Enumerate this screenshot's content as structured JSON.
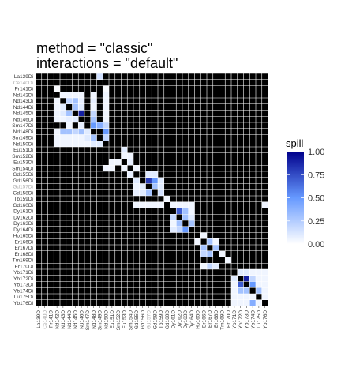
{
  "chart_data": {
    "type": "heatmap",
    "title_lines": [
      "method = \"classic\"",
      "interactions = \"default\""
    ],
    "channels": [
      "La139Di",
      "Ce140Di",
      "Pr141Di",
      "Nd142Di",
      "Nd143Di",
      "Nd144Di",
      "Nd145Di",
      "Nd146Di",
      "Sm147Di",
      "Nd148Di",
      "Sm149Di",
      "Nd150Di",
      "Eu151Di",
      "Sm152Di",
      "Eu153Di",
      "Sm154Di",
      "Gd155Di",
      "Gd156Di",
      "Gd157Di",
      "Gd158Di",
      "Tb159Di",
      "Gd160Di",
      "Dy161Di",
      "Dy162Di",
      "Dy163Di",
      "Dy164Di",
      "Ho165Di",
      "Er166Di",
      "Er167Di",
      "Er168Di",
      "Tm169Di",
      "Er170Di",
      "Yb171Di",
      "Yb172Di",
      "Yb173Di",
      "Yb174Di",
      "Lu175Di",
      "Yb176Di"
    ],
    "muted_channels": [
      "Ce140Di",
      "Gd157Di"
    ],
    "legend": {
      "title": "spill",
      "ticks": [
        1.0,
        0.75,
        0.5,
        0.25,
        0.0
      ],
      "tick_labels": [
        "1.00",
        "0.75",
        "0.50",
        "0.25",
        "0.00"
      ],
      "range": [
        0,
        1
      ]
    },
    "colors": {
      "zero": "#000000",
      "low": "#ffffff",
      "mid": "#6699ff",
      "high": "#00008b",
      "diagonal": "#000000",
      "grid": "#ffffff"
    },
    "cells": [
      [
        0,
        10,
        0.15
      ],
      [
        2,
        3,
        0.02
      ],
      [
        2,
        11,
        0.02
      ],
      [
        3,
        4,
        0.05
      ],
      [
        3,
        5,
        0.05
      ],
      [
        3,
        6,
        0.05
      ],
      [
        3,
        7,
        0.05
      ],
      [
        3,
        9,
        0.05
      ],
      [
        3,
        11,
        0.05
      ],
      [
        4,
        3,
        0.05
      ],
      [
        4,
        5,
        0.2
      ],
      [
        4,
        6,
        0.3
      ],
      [
        4,
        7,
        0.08
      ],
      [
        4,
        9,
        0.08
      ],
      [
        4,
        11,
        0.05
      ],
      [
        5,
        3,
        0.05
      ],
      [
        5,
        4,
        0.1
      ],
      [
        5,
        6,
        0.3
      ],
      [
        5,
        7,
        0.1
      ],
      [
        5,
        9,
        0.05
      ],
      [
        5,
        11,
        0.05
      ],
      [
        6,
        3,
        0.05
      ],
      [
        6,
        4,
        0.1
      ],
      [
        6,
        5,
        0.3
      ],
      [
        6,
        7,
        0.9
      ],
      [
        6,
        9,
        0.2
      ],
      [
        6,
        11,
        0.05
      ],
      [
        7,
        3,
        0.05
      ],
      [
        7,
        4,
        0.05
      ],
      [
        7,
        5,
        0.08
      ],
      [
        7,
        6,
        0.1
      ],
      [
        7,
        9,
        0.3
      ],
      [
        7,
        11,
        0.05
      ],
      [
        8,
        5,
        0.05
      ],
      [
        8,
        7,
        0.08
      ],
      [
        8,
        9,
        0.5
      ],
      [
        8,
        10,
        0.4
      ],
      [
        8,
        11,
        0.2
      ],
      [
        9,
        3,
        0.05
      ],
      [
        9,
        4,
        0.3
      ],
      [
        9,
        5,
        0.3
      ],
      [
        9,
        6,
        0.2
      ],
      [
        9,
        7,
        0.3
      ],
      [
        9,
        8,
        0.1
      ],
      [
        9,
        11,
        0.5
      ],
      [
        10,
        3,
        0.05
      ],
      [
        10,
        4,
        0.05
      ],
      [
        10,
        5,
        0.05
      ],
      [
        10,
        6,
        0.05
      ],
      [
        10,
        7,
        0.05
      ],
      [
        10,
        8,
        0.1
      ],
      [
        10,
        9,
        0.3
      ],
      [
        10,
        11,
        0.2
      ],
      [
        11,
        3,
        0.05
      ],
      [
        11,
        4,
        0.05
      ],
      [
        11,
        5,
        0.05
      ],
      [
        11,
        6,
        0.05
      ],
      [
        11,
        7,
        0.05
      ],
      [
        11,
        8,
        0.05
      ],
      [
        11,
        9,
        0.1
      ],
      [
        11,
        10,
        0.1
      ],
      [
        12,
        14,
        0.1
      ],
      [
        13,
        14,
        0.05
      ],
      [
        13,
        15,
        0.05
      ],
      [
        14,
        12,
        0.05
      ],
      [
        14,
        13,
        0.05
      ],
      [
        14,
        15,
        0.08
      ],
      [
        15,
        11,
        0.05
      ],
      [
        15,
        12,
        0.05
      ],
      [
        15,
        14,
        0.05
      ],
      [
        15,
        16,
        0.05
      ],
      [
        16,
        15,
        0.08
      ],
      [
        16,
        18,
        0.1
      ],
      [
        16,
        19,
        0.1
      ],
      [
        17,
        16,
        0.1
      ],
      [
        17,
        18,
        0.8
      ],
      [
        17,
        19,
        0.5
      ],
      [
        17,
        20,
        0.1
      ],
      [
        18,
        16,
        0.05
      ],
      [
        18,
        17,
        0.1
      ],
      [
        18,
        19,
        0.3
      ],
      [
        18,
        20,
        0.1
      ],
      [
        19,
        16,
        0.08
      ],
      [
        19,
        17,
        0.1
      ],
      [
        19,
        18,
        0.3
      ],
      [
        19,
        20,
        0.15
      ],
      [
        20,
        21,
        0.05
      ],
      [
        21,
        16,
        0.05
      ],
      [
        21,
        17,
        0.05
      ],
      [
        21,
        18,
        0.05
      ],
      [
        21,
        19,
        0.05
      ],
      [
        21,
        20,
        0.05
      ],
      [
        21,
        22,
        0.05
      ],
      [
        21,
        23,
        0.05
      ],
      [
        21,
        24,
        0.05
      ],
      [
        21,
        25,
        0.05
      ],
      [
        21,
        37,
        0.05
      ],
      [
        22,
        23,
        0.7
      ],
      [
        22,
        24,
        0.3
      ],
      [
        22,
        25,
        0.05
      ],
      [
        23,
        22,
        0.2
      ],
      [
        23,
        24,
        0.3
      ],
      [
        23,
        25,
        0.1
      ],
      [
        24,
        22,
        0.05
      ],
      [
        24,
        23,
        0.3
      ],
      [
        24,
        25,
        0.3
      ],
      [
        25,
        22,
        0.1
      ],
      [
        25,
        23,
        0.2
      ],
      [
        25,
        24,
        0.5
      ],
      [
        26,
        27,
        0.05
      ],
      [
        27,
        26,
        0.05
      ],
      [
        27,
        28,
        0.3
      ],
      [
        27,
        29,
        0.05
      ],
      [
        28,
        27,
        0.3
      ],
      [
        28,
        29,
        0.3
      ],
      [
        29,
        27,
        0.2
      ],
      [
        29,
        28,
        0.3
      ],
      [
        29,
        30,
        0.05
      ],
      [
        30,
        31,
        0.05
      ],
      [
        31,
        27,
        0.05
      ],
      [
        31,
        28,
        0.2
      ],
      [
        31,
        29,
        0.1
      ],
      [
        32,
        33,
        0.1
      ],
      [
        32,
        34,
        0.1
      ],
      [
        32,
        35,
        0.05
      ],
      [
        32,
        36,
        0.05
      ],
      [
        32,
        37,
        0.05
      ],
      [
        33,
        32,
        0.1
      ],
      [
        33,
        34,
        0.9
      ],
      [
        33,
        35,
        0.2
      ],
      [
        33,
        36,
        0.05
      ],
      [
        33,
        37,
        0.05
      ],
      [
        34,
        32,
        0.05
      ],
      [
        34,
        33,
        0.7
      ],
      [
        34,
        35,
        0.5
      ],
      [
        34,
        36,
        0.05
      ],
      [
        34,
        37,
        0.05
      ],
      [
        35,
        32,
        0.05
      ],
      [
        35,
        33,
        0.3
      ],
      [
        35,
        34,
        0.3
      ],
      [
        35,
        36,
        0.3
      ],
      [
        35,
        37,
        0.05
      ],
      [
        36,
        32,
        0.05
      ],
      [
        36,
        33,
        0.05
      ],
      [
        36,
        34,
        0.05
      ],
      [
        36,
        35,
        0.05
      ],
      [
        36,
        37,
        0.05
      ],
      [
        37,
        32,
        0.05
      ],
      [
        37,
        33,
        0.05
      ],
      [
        37,
        34,
        0.05
      ],
      [
        37,
        35,
        0.4
      ],
      [
        37,
        36,
        0.05
      ]
    ]
  }
}
